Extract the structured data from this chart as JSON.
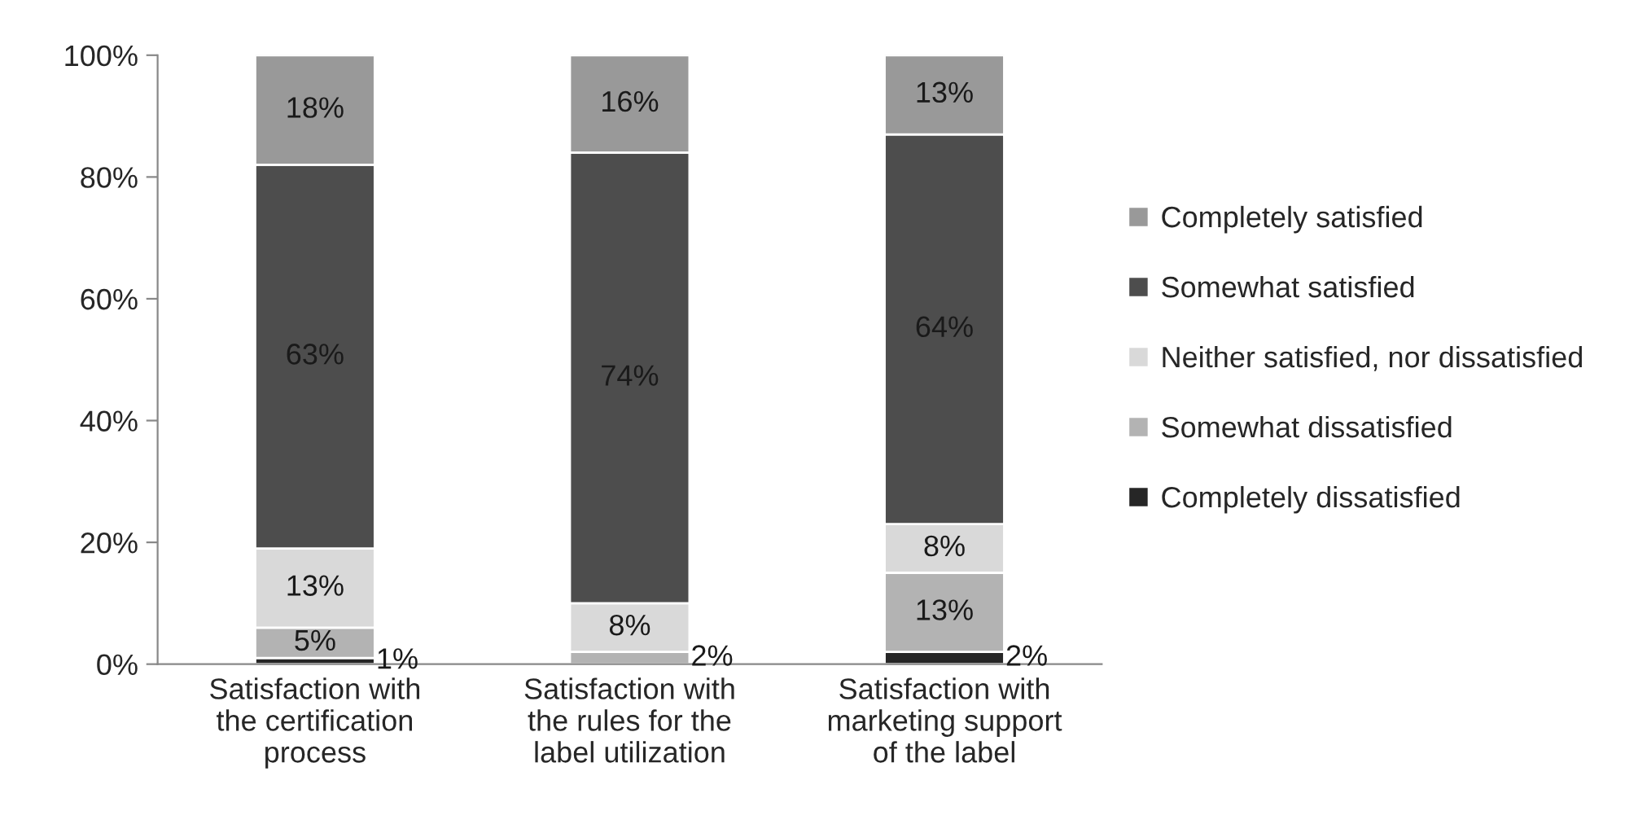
{
  "chart_data": {
    "type": "bar",
    "stacked": true,
    "categories": [
      "Satisfaction with\nthe certification\nprocess",
      "Satisfaction with\nthe rules for the\nlabel utilization",
      "Satisfaction with\nmarketing support\nof the label"
    ],
    "series": [
      {
        "name": "Completely dissatisfied",
        "color": "#262626",
        "values": [
          1,
          null,
          2
        ],
        "value_labels": [
          "1%",
          null,
          "2%"
        ]
      },
      {
        "name": "Somewhat dissatisfied",
        "color": "#b3b3b3",
        "values": [
          5,
          2,
          13
        ],
        "value_labels": [
          "5%",
          "2%",
          "13%"
        ]
      },
      {
        "name": "Neither satisfied, nor dissatisfied",
        "color": "#d9d9d9",
        "values": [
          13,
          8,
          8
        ],
        "value_labels": [
          "13%",
          "8%",
          "8%"
        ]
      },
      {
        "name": "Somewhat satisfied",
        "color": "#4d4d4d",
        "values": [
          63,
          74,
          64
        ],
        "value_labels": [
          "63%",
          "74%",
          "64%"
        ]
      },
      {
        "name": "Completely satisfied",
        "color": "#999999",
        "values": [
          18,
          16,
          13
        ],
        "value_labels": [
          "18%",
          "16%",
          "13%"
        ]
      }
    ],
    "ylim": [
      0,
      100
    ],
    "yticks": [
      {
        "value": 0,
        "label": "0%"
      },
      {
        "value": 20,
        "label": "20%"
      },
      {
        "value": 40,
        "label": "40%"
      },
      {
        "value": 60,
        "label": "60%"
      },
      {
        "value": 80,
        "label": "80%"
      },
      {
        "value": 100,
        "label": "100%"
      }
    ],
    "grid": false,
    "legend": "right"
  }
}
